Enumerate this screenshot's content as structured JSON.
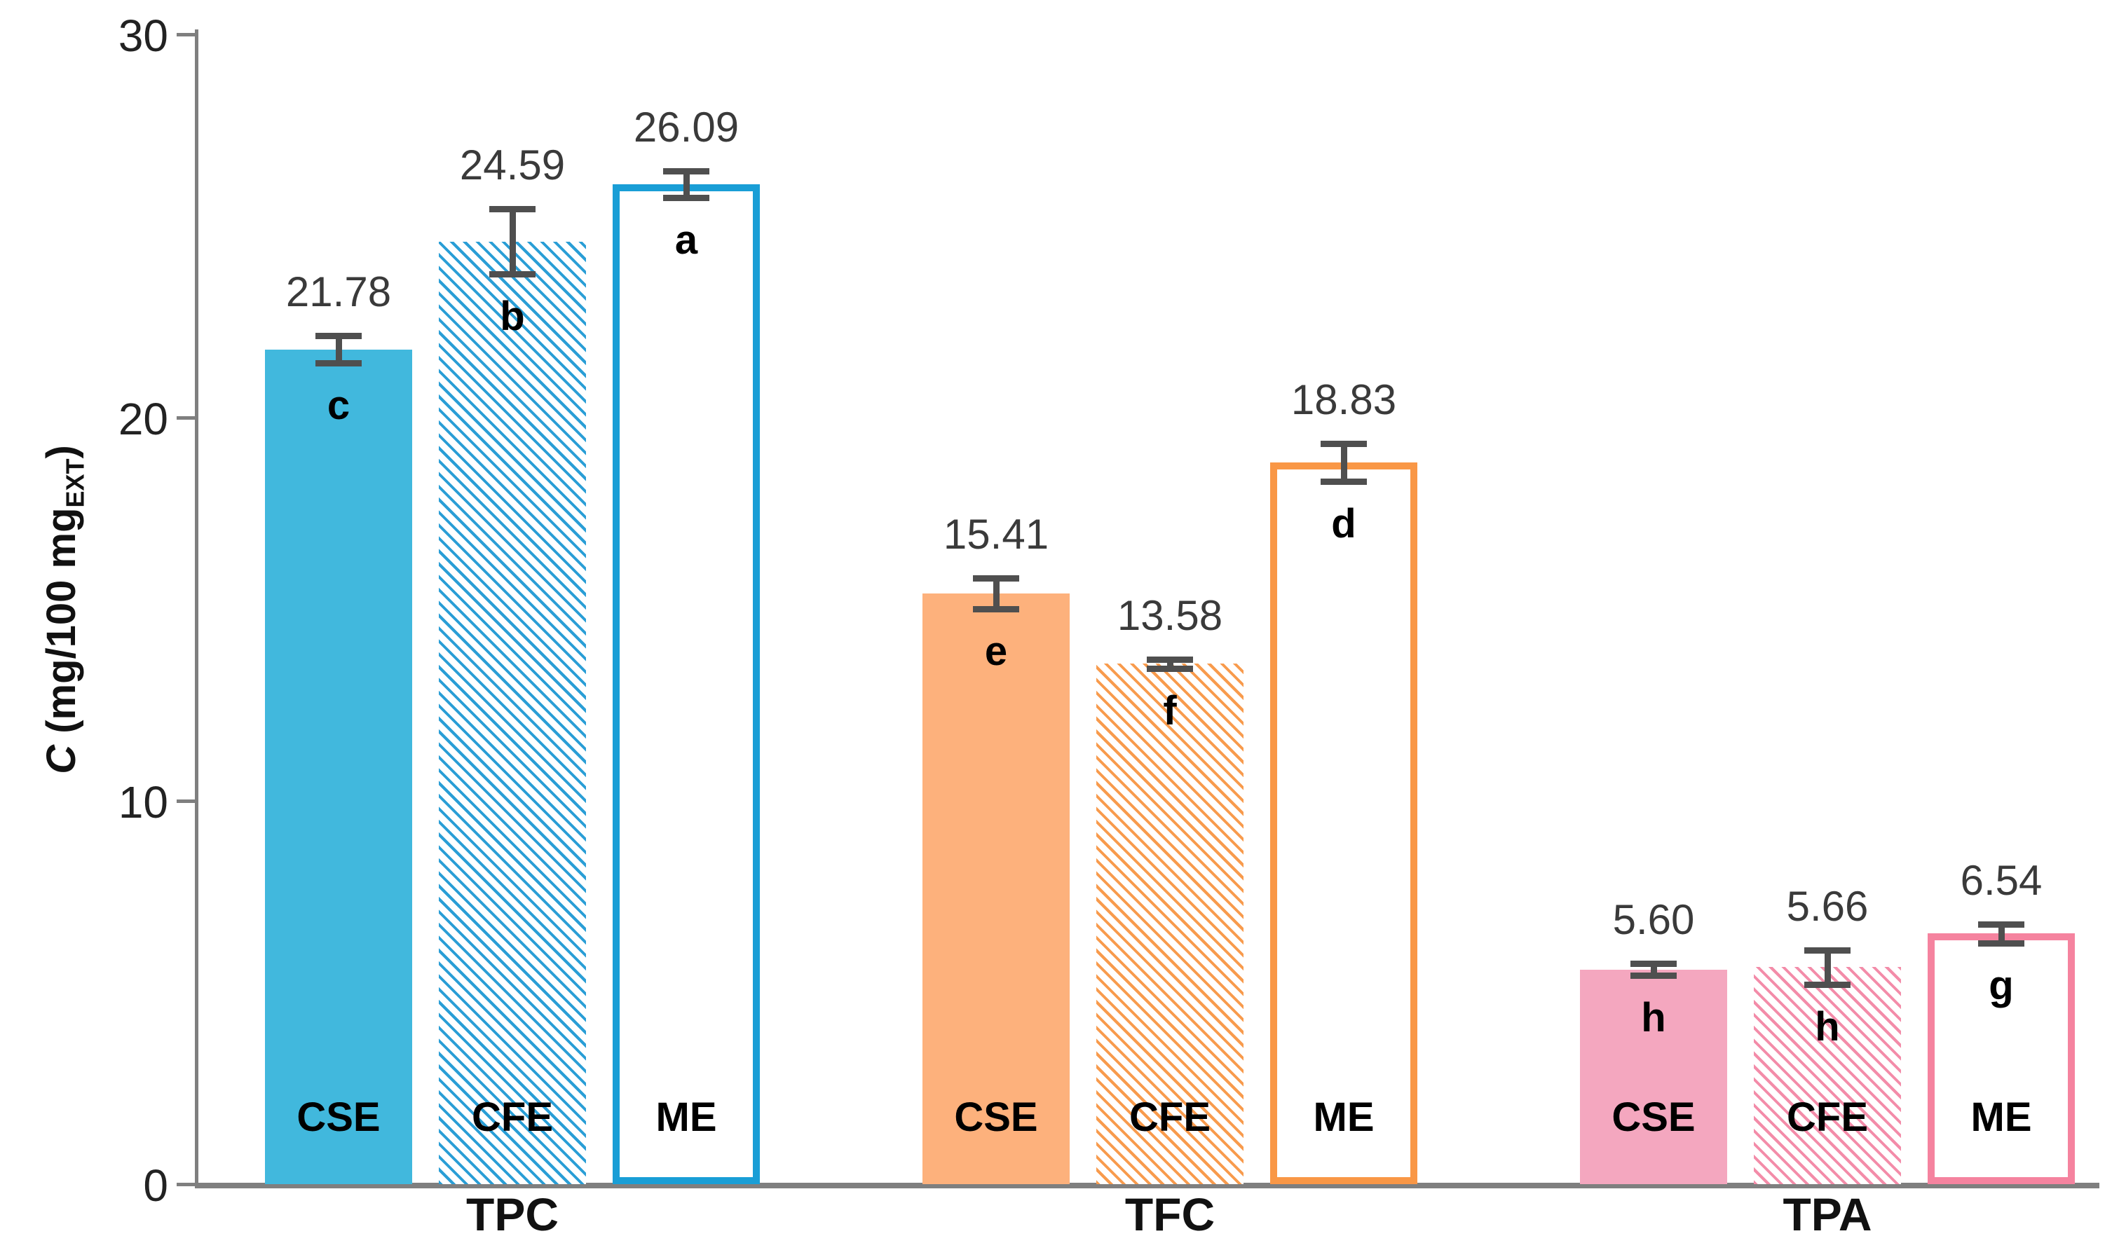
{
  "chart_data": {
    "type": "bar",
    "title": "",
    "xlabel": "",
    "ylabel": {
      "italic_part": "C",
      "normal_part": " (mg/100 mg",
      "subscript": "EXT",
      "close_part": ")"
    },
    "ylim": [
      0,
      30
    ],
    "yticks": [
      "0",
      "10",
      "20",
      "30"
    ],
    "grid": "off",
    "legend": "none",
    "axis_color": "#7f7f7f",
    "error_bar_color": "#4f4f4f",
    "value_label_color": "#3a3a3a",
    "groups": [
      {
        "label": "TPC",
        "colors": {
          "solid": "#41b8dd",
          "line": "#199ed6",
          "hatch": "#2a9ed6"
        },
        "bars": [
          {
            "series": "CSE",
            "value": 21.78,
            "display": "21.78",
            "err": 0.35,
            "letter": "c",
            "style": "solid"
          },
          {
            "series": "CFE",
            "value": 24.59,
            "display": "24.59",
            "err": 0.85,
            "letter": "b",
            "style": "hatch"
          },
          {
            "series": "ME",
            "value": 26.09,
            "display": "26.09",
            "err": 0.35,
            "letter": "a",
            "style": "outline"
          }
        ]
      },
      {
        "label": "TFC",
        "colors": {
          "solid": "#fdb17c",
          "line": "#f99746",
          "hatch": "#f89b4d"
        },
        "bars": [
          {
            "series": "CSE",
            "value": 15.41,
            "display": "15.41",
            "err": 0.4,
            "letter": "e",
            "style": "solid"
          },
          {
            "series": "CFE",
            "value": 13.58,
            "display": "13.58",
            "err": 0.12,
            "letter": "f",
            "style": "hatch"
          },
          {
            "series": "ME",
            "value": 18.83,
            "display": "18.83",
            "err": 0.5,
            "letter": "d",
            "style": "outline"
          }
        ]
      },
      {
        "label": "TPA",
        "colors": {
          "solid": "#f4a7bf",
          "line": "#f5839f",
          "hatch": "#f38ca9"
        },
        "bars": [
          {
            "series": "CSE",
            "value": 5.6,
            "display": "5.60",
            "err": 0.15,
            "letter": "h",
            "style": "solid"
          },
          {
            "series": "CFE",
            "value": 5.66,
            "display": "5.66",
            "err": 0.45,
            "letter": "h",
            "style": "hatch"
          },
          {
            "series": "ME",
            "value": 6.54,
            "display": "6.54",
            "err": 0.25,
            "letter": "g",
            "style": "outline"
          }
        ]
      }
    ]
  }
}
